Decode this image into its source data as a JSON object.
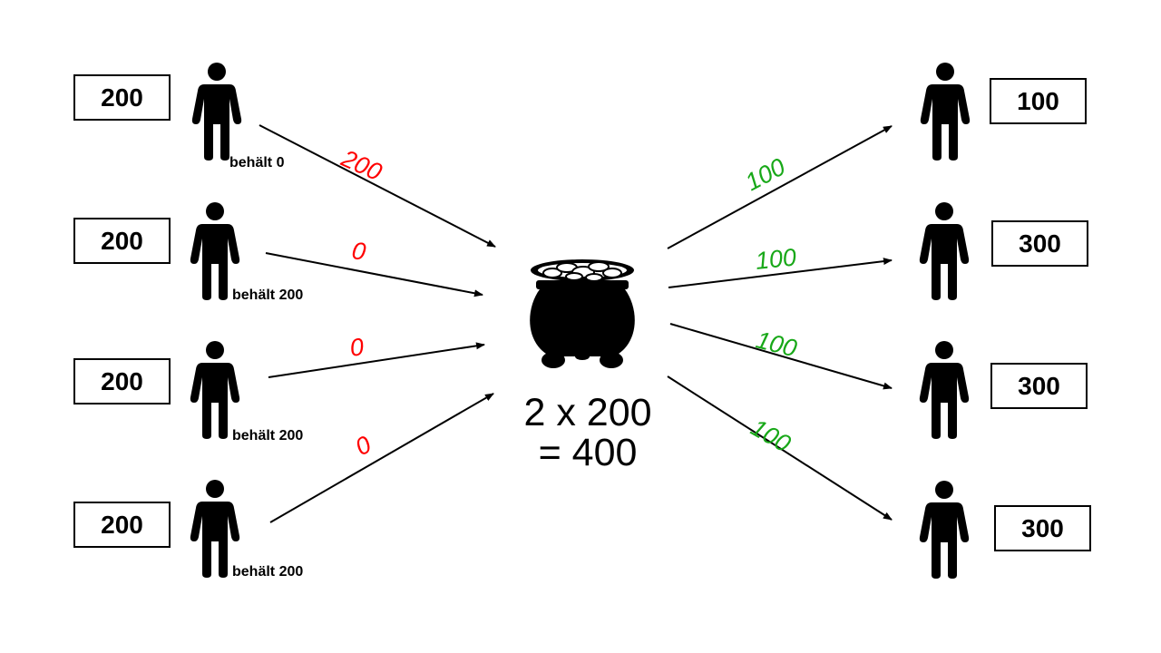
{
  "contributors": [
    {
      "endowment": "200",
      "keeps_label": "behält 0",
      "contribution": "200"
    },
    {
      "endowment": "200",
      "keeps_label": "behält 200",
      "contribution": "0"
    },
    {
      "endowment": "200",
      "keeps_label": "behält 200",
      "contribution": "0"
    },
    {
      "endowment": "200",
      "keeps_label": "behält 200",
      "contribution": "0"
    }
  ],
  "pot": {
    "line1": "2 x 200",
    "line2": "= 400",
    "icon": "money-pot-icon"
  },
  "recipients": [
    {
      "payout": "100",
      "total": "100"
    },
    {
      "payout": "100",
      "total": "300"
    },
    {
      "payout": "100",
      "total": "300"
    },
    {
      "payout": "100",
      "total": "300"
    }
  ],
  "colors": {
    "contribution": "#ff0000",
    "payout": "#18a818",
    "ink": "#000000"
  }
}
